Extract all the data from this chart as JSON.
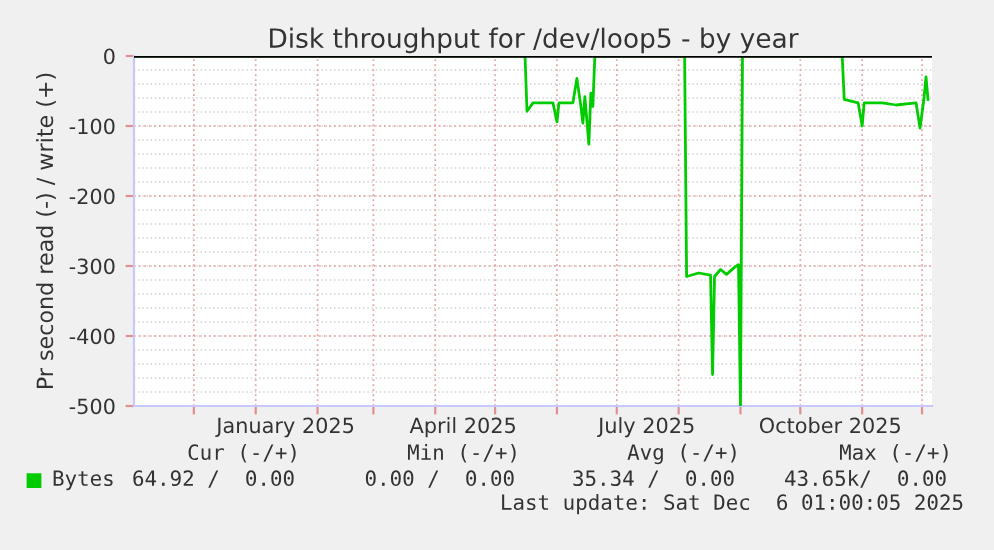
{
  "chart_data": {
    "type": "line",
    "title": "Disk throughput for /dev/loop5 - by year",
    "ylabel": "Pr second read (-) / write (+)",
    "series": [
      {
        "name": "Bytes",
        "color": "#00cc00",
        "x": [
          "2024-11-01",
          "2025-05-16",
          "2025-05-17",
          "2025-05-20",
          "2025-05-30",
          "2025-06-01",
          "2025-06-02",
          "2025-06-09",
          "2025-06-11",
          "2025-06-13",
          "2025-06-14",
          "2025-06-15",
          "2025-06-17",
          "2025-06-18",
          "2025-06-19",
          "2025-06-20",
          "2025-08-04",
          "2025-08-05",
          "2025-08-11",
          "2025-08-17",
          "2025-08-18",
          "2025-08-19",
          "2025-08-22",
          "2025-08-25",
          "2025-08-29",
          "2025-08-31",
          "2025-09-01",
          "2025-09-02",
          "2025-10-22",
          "2025-10-23",
          "2025-10-30",
          "2025-11-01",
          "2025-11-02",
          "2025-11-11",
          "2025-11-18",
          "2025-11-28",
          "2025-11-30",
          "2025-12-02",
          "2025-12-03",
          "2025-12-04"
        ],
        "values": [
          0,
          0,
          -79,
          -67,
          -67,
          -94,
          -67,
          -67,
          -32,
          -72,
          -96,
          -58,
          -126,
          -53,
          -72,
          0,
          0,
          -315,
          -310,
          -313,
          -455,
          -315,
          -305,
          -312,
          -302,
          -298,
          -500,
          0,
          0,
          -62,
          -67,
          -100,
          -67,
          -67,
          -70,
          -67,
          -103,
          -60,
          -30,
          -62
        ]
      }
    ],
    "xlim": [
      "2024-11-01",
      "2025-12-06"
    ],
    "xticks": [
      {
        "value": "2024-12-01",
        "label": null
      },
      {
        "value": "2025-01-01",
        "label": null
      },
      {
        "value": "2025-01-16",
        "label": "January 2025"
      },
      {
        "value": "2025-02-01",
        "label": null
      },
      {
        "value": "2025-03-01",
        "label": null
      },
      {
        "value": "2025-04-01",
        "label": null
      },
      {
        "value": "2025-04-15",
        "label": "April 2025"
      },
      {
        "value": "2025-05-01",
        "label": null
      },
      {
        "value": "2025-06-01",
        "label": null
      },
      {
        "value": "2025-07-01",
        "label": null
      },
      {
        "value": "2025-07-16",
        "label": "July 2025"
      },
      {
        "value": "2025-08-01",
        "label": null
      },
      {
        "value": "2025-09-01",
        "label": null
      },
      {
        "value": "2025-10-01",
        "label": null
      },
      {
        "value": "2025-10-16",
        "label": "October 2025"
      },
      {
        "value": "2025-11-01",
        "label": null
      },
      {
        "value": "2025-12-01",
        "label": null
      }
    ],
    "ylim": [
      -500,
      0
    ],
    "yticks": [
      -500,
      -400,
      -300,
      -200,
      -100,
      0
    ],
    "grid": true,
    "legend": "bottom left",
    "annotations": [
      "Cur (-/+)",
      "Min (-/+)",
      "Avg (-/+)",
      "Max (-/+)",
      "64.92 /  0.00",
      "0.00 /  0.00",
      "35.34 /  0.00",
      "43.65k/  0.00",
      "Last update: Sat Dec  6 01:00:05 2025"
    ]
  }
}
